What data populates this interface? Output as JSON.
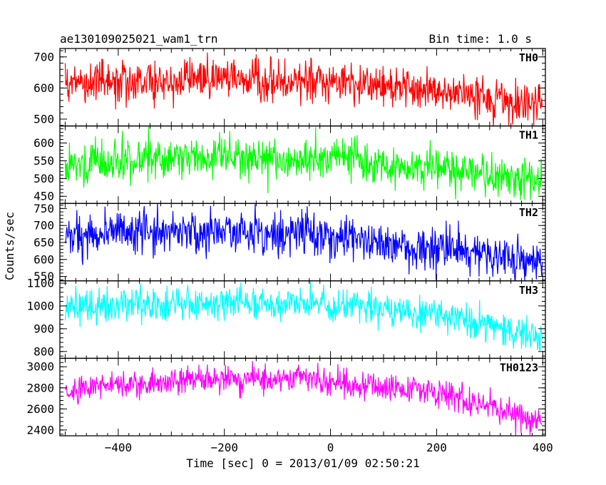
{
  "header": {
    "left": "ae130109025021_wam1_trn",
    "right": "Bin time: 1.0 s"
  },
  "chart_data": {
    "type": "line",
    "xlabel": "Time [sec] 0 = 2013/01/09 02:50:21",
    "ylabel": "Counts/sec",
    "xlim": [
      -510,
      405
    ],
    "xticks": [
      -400,
      -200,
      0,
      200,
      400
    ],
    "x_range": [
      -500,
      399
    ],
    "x_step": 1,
    "grid": false,
    "panels": [
      {
        "name": "TH0",
        "color": "#ff0000",
        "ylim": [
          478,
          727
        ],
        "yticks": [
          500,
          600,
          700
        ],
        "trend": [
          [
            -500,
            612
          ],
          [
            -200,
            635
          ],
          [
            0,
            615
          ],
          [
            200,
            590
          ],
          [
            400,
            545
          ]
        ],
        "noise": 33
      },
      {
        "name": "TH1",
        "color": "#00ff00",
        "ylim": [
          430,
          648
        ],
        "yticks": [
          450,
          500,
          550,
          600
        ],
        "trend": [
          [
            -500,
            548
          ],
          [
            -200,
            562
          ],
          [
            0,
            555
          ],
          [
            200,
            530
          ],
          [
            400,
            490
          ]
        ],
        "noise": 29
      },
      {
        "name": "TH2",
        "color": "#0000ff",
        "ylim": [
          537,
          765
        ],
        "yticks": [
          550,
          600,
          650,
          700,
          750
        ],
        "trend": [
          [
            -500,
            668
          ],
          [
            -200,
            685
          ],
          [
            0,
            670
          ],
          [
            200,
            635
          ],
          [
            400,
            590
          ]
        ],
        "noise": 31
      },
      {
        "name": "TH3",
        "color": "#00ffff",
        "ylim": [
          770,
          1110
        ],
        "yticks": [
          800,
          900,
          1000,
          1100
        ],
        "trend": [
          [
            -500,
            990
          ],
          [
            -200,
            1012
          ],
          [
            0,
            1005
          ],
          [
            200,
            965
          ],
          [
            400,
            855
          ]
        ],
        "noise": 36
      },
      {
        "name": "TH0123",
        "color": "#ff00ff",
        "ylim": [
          2345,
          3080
        ],
        "yticks": [
          2400,
          2600,
          2800,
          3000
        ],
        "trend": [
          [
            -500,
            2800
          ],
          [
            -200,
            2890
          ],
          [
            0,
            2855
          ],
          [
            200,
            2750
          ],
          [
            400,
            2470
          ]
        ],
        "noise": 68
      }
    ]
  }
}
